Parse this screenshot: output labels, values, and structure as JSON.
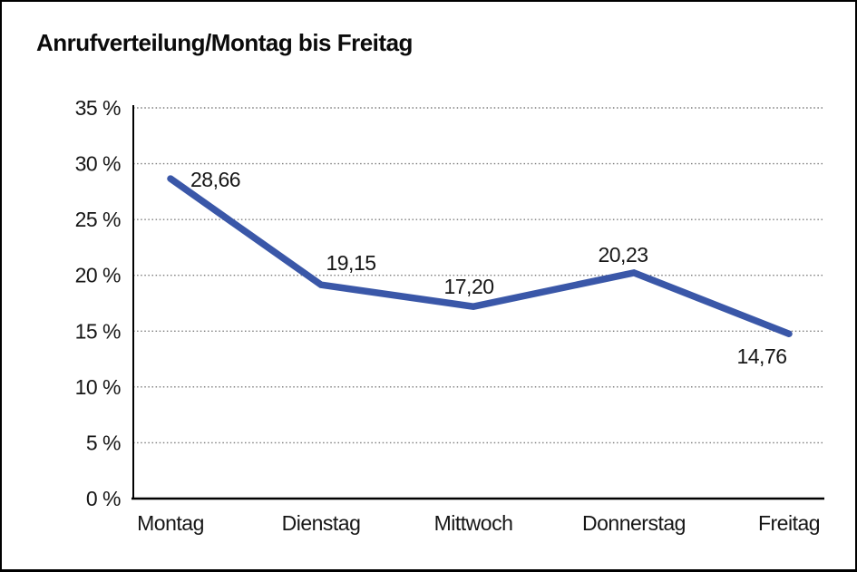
{
  "title": "Anrufverteilung/Montag bis Freitag",
  "chart_data": {
    "type": "line",
    "title": "Anrufverteilung/Montag bis Freitag",
    "categories": [
      "Montag",
      "Dienstag",
      "Mittwoch",
      "Donnerstag",
      "Freitag"
    ],
    "values": [
      28.66,
      19.15,
      17.2,
      20.23,
      14.76
    ],
    "value_labels": [
      "28,66",
      "19,15",
      "17,20",
      "20,23",
      "14,76"
    ],
    "series_name": "Anrufverteilung",
    "xlabel": "",
    "ylabel": "",
    "ylim": [
      0,
      35
    ],
    "y_ticks": [
      0,
      5,
      10,
      15,
      20,
      25,
      30,
      35
    ],
    "y_tick_labels": [
      "0 %",
      "5 %",
      "10 %",
      "15 %",
      "20 %",
      "25 %",
      "30 %",
      "35 %"
    ],
    "grid": "horizontal-dotted",
    "legend": "none"
  },
  "colors": {
    "line": "#3A57A8",
    "grid": "#7d7d7d",
    "axis": "#000000",
    "text": "#161616",
    "background": "#ffffff",
    "border": "#000000"
  }
}
